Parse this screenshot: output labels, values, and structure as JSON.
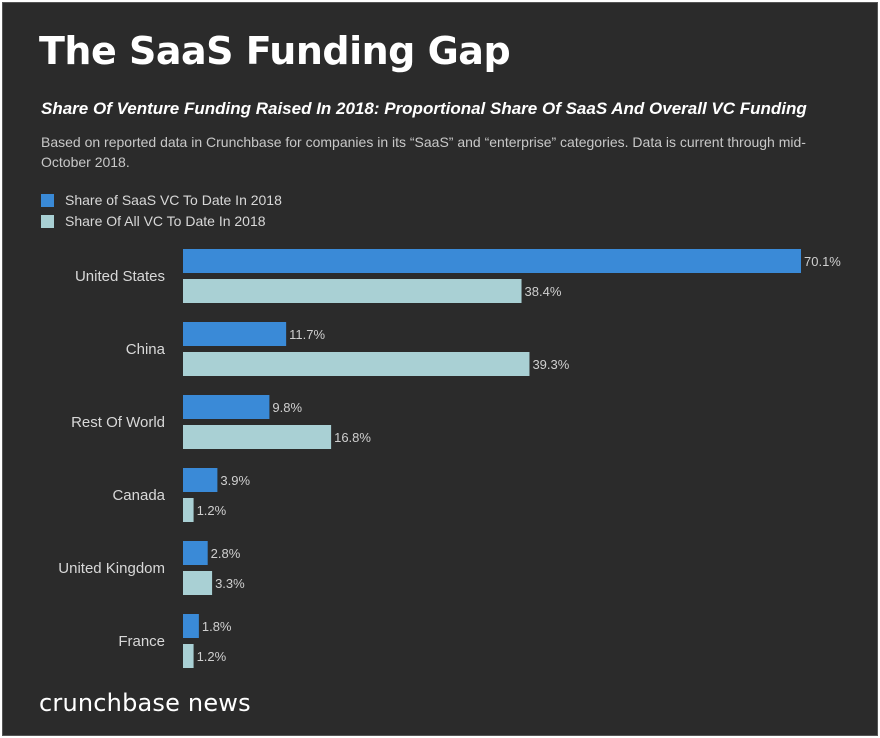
{
  "header": {
    "title": "The SaaS Funding Gap",
    "subtitle": "Share Of Venture Funding Raised In 2018: Proportional Share Of SaaS And Overall VC Funding",
    "note": "Based on reported data in Crunchbase for companies in its “SaaS” and “enterprise” categories. Data is current through mid- October 2018."
  },
  "footer": {
    "brand": "crunchbase news"
  },
  "colors": {
    "saas": "#3a8ad7",
    "all_vc": "#a9d0d4",
    "background": "#2b2b2b",
    "label": "#d8d8d8"
  },
  "chart_data": {
    "type": "bar",
    "orientation": "horizontal",
    "categories": [
      "United States",
      "China",
      "Rest Of World",
      "Canada",
      "United Kingdom",
      "France"
    ],
    "series": [
      {
        "name": "Share of SaaS VC To Date In 2018",
        "values": [
          70.1,
          11.7,
          9.8,
          3.9,
          2.8,
          1.8
        ],
        "labels": [
          "70.1%",
          "11.7%",
          "9.8%",
          "3.9%",
          "2.8%",
          "1.8%"
        ]
      },
      {
        "name": "Share Of All VC To Date In 2018",
        "values": [
          38.4,
          39.3,
          16.8,
          1.2,
          3.3,
          1.2
        ],
        "labels": [
          "38.4%",
          "39.3%",
          "16.8%",
          "1.2%",
          "3.3%",
          "1.2%"
        ]
      }
    ],
    "unit": "%",
    "xlim": [
      0,
      70.1
    ],
    "grid": false,
    "legend": "top-left"
  }
}
